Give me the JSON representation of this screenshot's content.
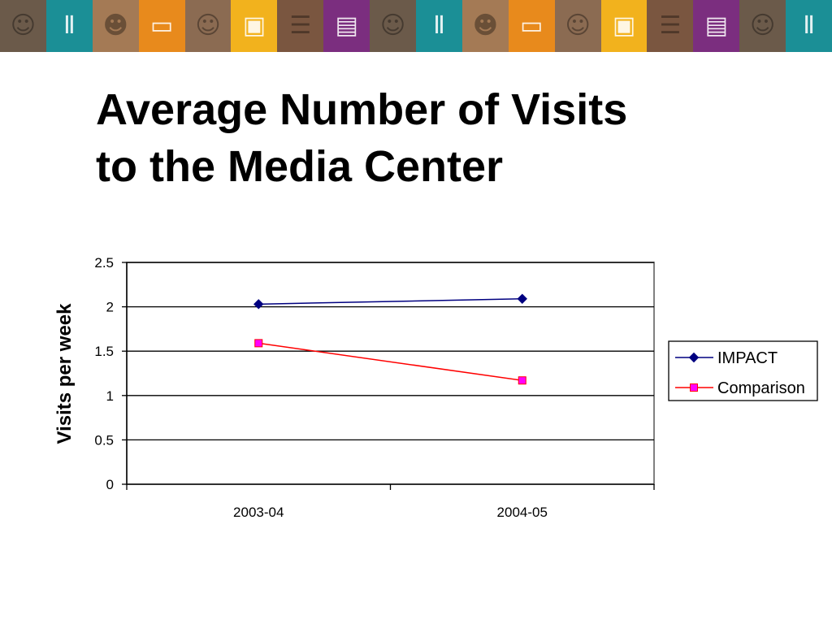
{
  "banner": {
    "tiles": [
      {
        "icon": "student-photo-icon",
        "color": "#6b5a4a"
      },
      {
        "icon": "books-icon",
        "color": "#1b8f96"
      },
      {
        "icon": "student-reading-icon",
        "color": "#a47a55"
      },
      {
        "icon": "laptop-icon",
        "color": "#e88a1c"
      },
      {
        "icon": "student-computer-icon",
        "color": "#8b6b52"
      },
      {
        "icon": "computer-lab-icon",
        "color": "#f2b21d"
      },
      {
        "icon": "library-shelves-icon",
        "color": "#7a5640"
      },
      {
        "icon": "book-pages-icon",
        "color": "#7b2e7f"
      },
      {
        "icon": "student-photo-icon",
        "color": "#6b5a4a"
      },
      {
        "icon": "books-icon",
        "color": "#1b8f96"
      },
      {
        "icon": "student-reading-icon",
        "color": "#a47a55"
      },
      {
        "icon": "laptop-icon",
        "color": "#e88a1c"
      },
      {
        "icon": "student-computer-icon",
        "color": "#8b6b52"
      },
      {
        "icon": "computer-lab-icon",
        "color": "#f2b21d"
      },
      {
        "icon": "library-shelves-icon",
        "color": "#7a5640"
      },
      {
        "icon": "book-pages-icon",
        "color": "#7b2e7f"
      },
      {
        "icon": "student-photo-icon",
        "color": "#6b5a4a"
      },
      {
        "icon": "books-icon",
        "color": "#1b8f96"
      }
    ]
  },
  "slide": {
    "title_line1": "Average Number of Visits",
    "title_line2": "to the Media Center"
  },
  "chart_data": {
    "type": "line",
    "title": "Average Number of Visits to the Media Center",
    "xlabel": "",
    "ylabel": "Visits per week",
    "categories": [
      "2003-04",
      "2004-05"
    ],
    "yticks": [
      "0",
      "0.5",
      "1",
      "1.5",
      "2",
      "2.5"
    ],
    "ylim": [
      0,
      2.5
    ],
    "grid": true,
    "legend_position": "right",
    "series": [
      {
        "name": "IMPACT",
        "values": [
          2.03,
          2.09
        ],
        "color": "#000080",
        "marker": "diamond"
      },
      {
        "name": "Comparison",
        "values": [
          1.59,
          1.17
        ],
        "color": "#ff0000",
        "marker": "square",
        "marker_fill": "#ff00ff"
      }
    ]
  }
}
